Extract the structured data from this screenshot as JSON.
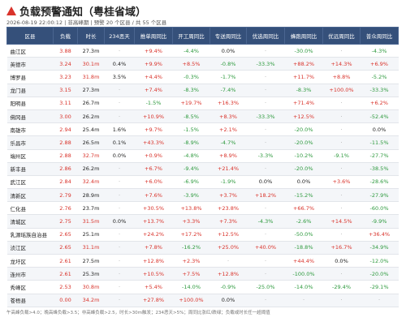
{
  "header": {
    "title": "负载预警通知（粤桂省域）",
    "subtitle": "2026-08-19 22:00:12 | 非高峰期 | 预警 20 个区县 / 共 55 个区县"
  },
  "table": {
    "columns": [
      "区县",
      "负载",
      "时长",
      "234恶天",
      "推单周同比",
      "开工周同比",
      "专送周同比",
      "优选周同比",
      "蜂跑周同比",
      "优远周同比",
      "普众周同比"
    ],
    "rows": [
      [
        "曲江区",
        "3.88",
        "27.3m",
        "·",
        "+9.4%",
        "-4.4%",
        "0.0%",
        "·",
        "-30.0%",
        "·",
        "-4.3%"
      ],
      [
        "英德市",
        "3.24",
        "30.1m",
        "0.4%",
        "+9.9%",
        "+8.5%",
        "-0.8%",
        "-33.3%",
        "+88.2%",
        "+14.3%",
        "+6.9%"
      ],
      [
        "博罗县",
        "3.23",
        "31.8m",
        "3.5%",
        "+4.4%",
        "-0.3%",
        "-1.7%",
        "·",
        "+11.7%",
        "+8.8%",
        "-5.2%"
      ],
      [
        "龙门县",
        "3.15",
        "27.3m",
        "·",
        "+7.4%",
        "-8.3%",
        "-7.4%",
        "·",
        "-8.3%",
        "+100.0%",
        "-33.3%"
      ],
      [
        "阳明县",
        "3.11",
        "26.7m",
        "·",
        "-1.5%",
        "+19.7%",
        "+16.3%",
        "·",
        "+71.4%",
        "·",
        "+6.2%"
      ],
      [
        "佛冈县",
        "3.00",
        "26.2m",
        "·",
        "+10.9%",
        "-8.5%",
        "+8.3%",
        "-33.3%",
        "+12.5%",
        "·",
        "-52.4%"
      ],
      [
        "南雄市",
        "2.94",
        "25.4m",
        "1.6%",
        "+9.7%",
        "-1.5%",
        "+2.1%",
        "·",
        "-20.0%",
        "·",
        "0.0%"
      ],
      [
        "乐昌市",
        "2.88",
        "26.5m",
        "0.1%",
        "+43.3%",
        "-8.9%",
        "-4.7%",
        "·",
        "-20.0%",
        "·",
        "-11.5%"
      ],
      [
        "端州区",
        "2.88",
        "32.7m",
        "0.0%",
        "+0.9%",
        "-4.8%",
        "+8.9%",
        "-3.3%",
        "-10.2%",
        "-9.1%",
        "-27.7%"
      ],
      [
        "新丰县",
        "2.86",
        "26.2m",
        "·",
        "+6.7%",
        "-9.4%",
        "+21.4%",
        "·",
        "-20.0%",
        "·",
        "-38.5%"
      ],
      [
        "武江区",
        "2.84",
        "32.4m",
        "·",
        "+6.0%",
        "-6.9%",
        "-1.9%",
        "0.0%",
        "0.0%",
        "+3.6%",
        "-28.6%"
      ],
      [
        "清新区",
        "2.79",
        "28.9m",
        "·",
        "+7.6%",
        "-3.9%",
        "+3.7%",
        "+18.2%",
        "-15.2%",
        "·",
        "-27.9%"
      ],
      [
        "仁化县",
        "2.76",
        "23.7m",
        "·",
        "+30.5%",
        "+13.8%",
        "+23.8%",
        "·",
        "+66.7%",
        "·",
        "-60.0%"
      ],
      [
        "清城区",
        "2.75",
        "31.5m",
        "0.0%",
        "+13.7%",
        "+3.3%",
        "+7.3%",
        "-4.3%",
        "-2.6%",
        "+14.5%",
        "-9.9%"
      ],
      [
        "乳源瑶族自治县",
        "2.65",
        "25.1m",
        "·",
        "+24.2%",
        "+17.2%",
        "+12.5%",
        "·",
        "-50.0%",
        "·",
        "+36.4%"
      ],
      [
        "浈江区",
        "2.65",
        "31.1m",
        "·",
        "+7.8%",
        "-16.2%",
        "+25.0%",
        "+40.0%",
        "-18.8%",
        "+16.7%",
        "-34.9%"
      ],
      [
        "龙圩区",
        "2.61",
        "27.5m",
        "·",
        "+12.8%",
        "+2.3%",
        "·",
        "·",
        "+44.4%",
        "0.0%",
        "-12.0%"
      ],
      [
        "连州市",
        "2.61",
        "25.3m",
        "·",
        "+10.5%",
        "+7.5%",
        "+12.8%",
        "·",
        "-100.0%",
        "·",
        "-20.0%"
      ],
      [
        "秀峰区",
        "2.53",
        "30.8m",
        "·",
        "+5.4%",
        "-14.0%",
        "-0.9%",
        "-25.0%",
        "-14.0%",
        "-29.4%",
        "-29.1%"
      ],
      [
        "苍梧县",
        "0.00",
        "34.2m",
        "·",
        "+27.8%",
        "+100.0%",
        "0.0%",
        "·",
        "·",
        "·",
        "·"
      ]
    ]
  },
  "footer": {
    "note": "午高峰负载>4.0；晚高峰负载>3.5；非高峰负载>2.5，时长>30m触发；234恶天>5%；周同比涨红/跌绿；负载或时长任一超阈值"
  }
}
